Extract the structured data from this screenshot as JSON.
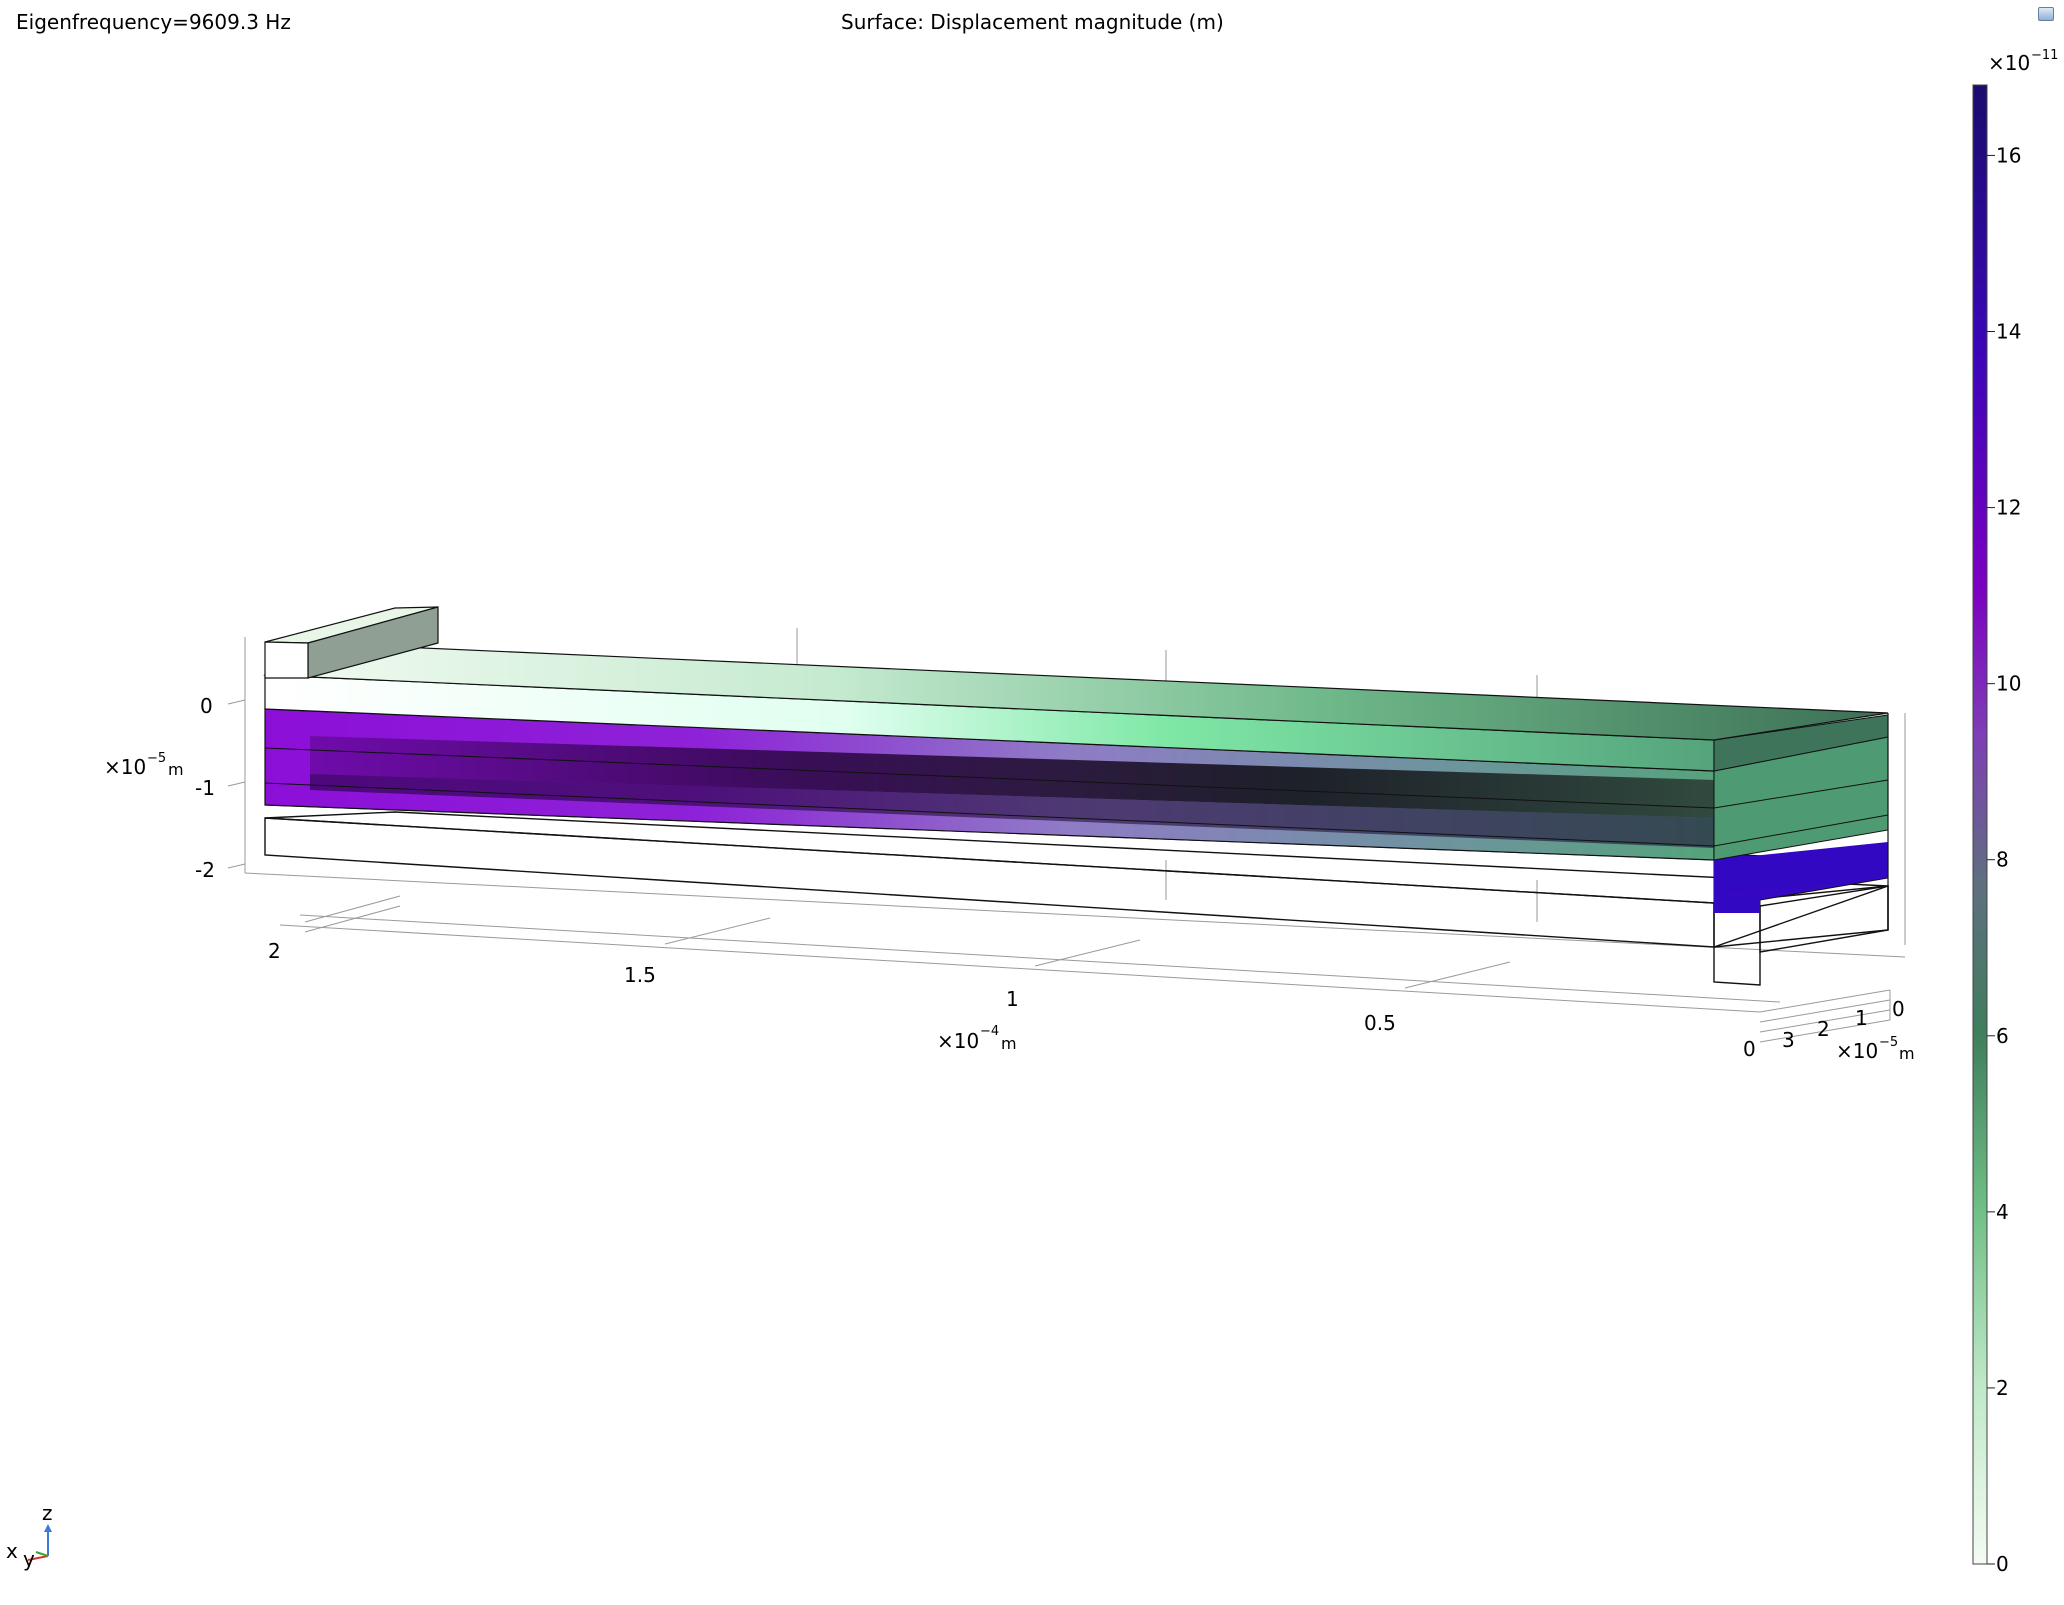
{
  "header": {
    "eigenfrequency": "Eigenfrequency=9609.3 Hz",
    "surface_title": "Surface: Displacement magnitude (m)"
  },
  "colorbar": {
    "exp_base": "×10",
    "exp_power": "−11",
    "ticks": [
      "16",
      "14",
      "12",
      "10",
      "8",
      "6",
      "4",
      "2",
      "0"
    ],
    "tick_values": [
      16,
      14,
      12,
      10,
      8,
      6,
      4,
      2,
      0
    ],
    "range": [
      0,
      16.8
    ],
    "colors": [
      "#f4fbf3",
      "#bfe9c8",
      "#6fbf86",
      "#3f7e5c",
      "#5f6f80",
      "#7e3fb5",
      "#7c00c2",
      "#3b06b8",
      "#1a0d6e"
    ]
  },
  "axes": {
    "z": {
      "ticks": [
        "0",
        "-1",
        "-2"
      ],
      "unit_base": "×10",
      "unit_power": "−5",
      "unit": "m"
    },
    "x": {
      "ticks": [
        "2",
        "1.5",
        "1",
        "0.5",
        "0"
      ],
      "unit_base": "×10",
      "unit_power": "−4",
      "unit": "m"
    },
    "y": {
      "ticks": [
        "3",
        "2",
        "1",
        "0"
      ],
      "unit_base": "×10",
      "unit_power": "−5",
      "unit": "m"
    }
  },
  "triad": {
    "z_label": "z",
    "x_label": "x",
    "y_label": "y"
  },
  "colors": {
    "background": "#ffffff",
    "purple": "#8a10d6",
    "blue": "#3a06c2",
    "green_dark": "#3e745a",
    "green_light": "#dff5e2"
  }
}
